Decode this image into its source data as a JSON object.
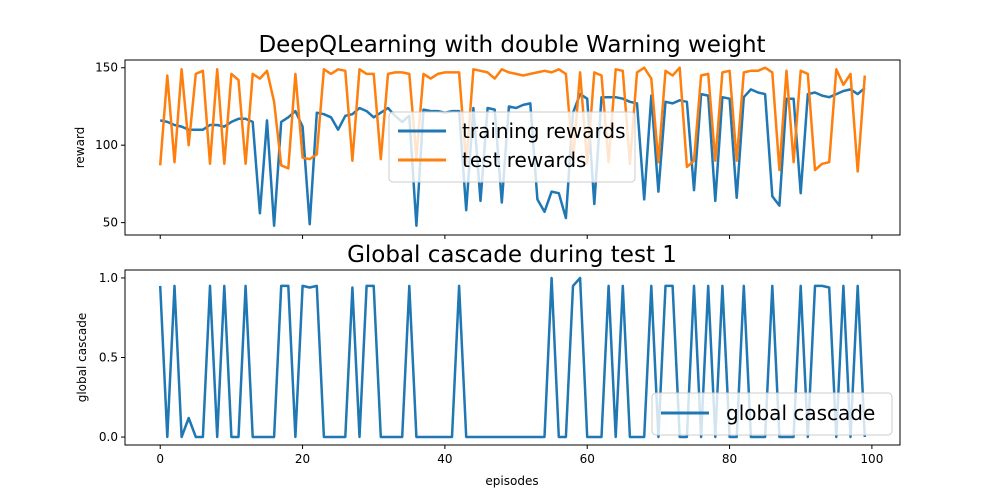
{
  "chart_data": [
    {
      "type": "line",
      "title": "DeepQLearning with double Warning weight",
      "xlabel": "",
      "ylabel": "reward",
      "xlim": [
        -4.95,
        103.95
      ],
      "ylim": [
        42,
        155
      ],
      "xticks": [
        0,
        20,
        40,
        60,
        80,
        100
      ],
      "show_xtick_labels": false,
      "yticks": [
        50,
        100,
        150
      ],
      "legend_position": "center",
      "series": [
        {
          "name": "training rewards",
          "color": "#1f77b4",
          "values": [
            116,
            115,
            113,
            112,
            110,
            110,
            110,
            113,
            113,
            112,
            115,
            117,
            117,
            115,
            56,
            116,
            48,
            115,
            118,
            122,
            112,
            49,
            121,
            120,
            118,
            110,
            119,
            120,
            124,
            122,
            118,
            121,
            124,
            119,
            115,
            119,
            48,
            123,
            122,
            122,
            121,
            122,
            122,
            58,
            124,
            64,
            124,
            123,
            63,
            125,
            124,
            126,
            127,
            65,
            57,
            70,
            69,
            53,
            121,
            133,
            130,
            62,
            131,
            131,
            131,
            130,
            128,
            127,
            65,
            132,
            70,
            128,
            127,
            129,
            128,
            71,
            133,
            132,
            64,
            131,
            130,
            66,
            131,
            136,
            134,
            133,
            67,
            61,
            130,
            130,
            69,
            133,
            134,
            132,
            131,
            133,
            135,
            136,
            133,
            137
          ]
        },
        {
          "name": "test rewards",
          "color": "#ff7f0e",
          "values": [
            87,
            145,
            89,
            149,
            100,
            146,
            148,
            88,
            149,
            88,
            146,
            142,
            88,
            146,
            143,
            148,
            128,
            87,
            85,
            146,
            92,
            91,
            94,
            149,
            146,
            149,
            148,
            90,
            149,
            146,
            146,
            91,
            146,
            147,
            147,
            146,
            92,
            146,
            143,
            146,
            147,
            147,
            147,
            88,
            149,
            148,
            147,
            143,
            149,
            147,
            146,
            145,
            146,
            147,
            148,
            147,
            149,
            146,
            90,
            147,
            88,
            147,
            145,
            89,
            149,
            148,
            88,
            147,
            150,
            143,
            89,
            148,
            145,
            150,
            86,
            90,
            145,
            146,
            90,
            147,
            148,
            90,
            147,
            148,
            148,
            150,
            147,
            84,
            148,
            89,
            148,
            146,
            84,
            88,
            89,
            149,
            139,
            146,
            83,
            145
          ]
        }
      ]
    },
    {
      "type": "line",
      "title": "Global cascade during test 1",
      "xlabel": "episodes",
      "ylabel": "global cascade",
      "xlim": [
        -4.95,
        103.95
      ],
      "ylim": [
        -0.05,
        1.05
      ],
      "xticks": [
        0,
        20,
        40,
        60,
        80,
        100
      ],
      "yticks": [
        0.0,
        0.5,
        1.0
      ],
      "ytick_labels": [
        "0.0",
        "0.5",
        "1.0"
      ],
      "legend_position": "bottom-right",
      "series": [
        {
          "name": "global cascade",
          "color": "#1f77b4",
          "values": [
            0.95,
            0,
            0.95,
            0,
            0.12,
            0,
            0,
            0.95,
            0,
            0.95,
            0,
            0,
            0.95,
            0,
            0,
            0,
            0,
            0.95,
            0.95,
            0,
            0.95,
            0.94,
            0.95,
            0,
            0,
            0,
            0,
            0.94,
            0,
            0.95,
            0.95,
            0,
            0,
            0,
            0,
            0.95,
            0,
            0,
            0,
            0,
            0,
            0,
            0.95,
            0,
            0,
            0,
            0,
            0,
            0,
            0,
            0,
            0,
            0,
            0,
            0,
            1.0,
            0,
            0,
            0.95,
            1.0,
            0,
            0,
            0,
            0.95,
            0,
            0.95,
            0,
            0,
            0,
            0.95,
            0,
            0.95,
            0.95,
            0,
            0,
            0.95,
            0,
            0.95,
            0,
            0.95,
            0,
            0,
            0.95,
            0,
            0,
            0,
            0.95,
            0,
            0,
            0,
            0.95,
            0,
            0.95,
            0.95,
            0.94,
            0,
            0.95,
            0,
            0.95,
            0
          ]
        }
      ]
    }
  ]
}
